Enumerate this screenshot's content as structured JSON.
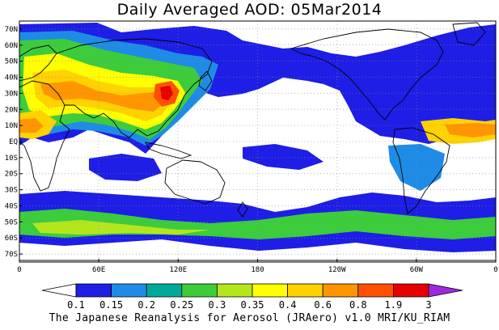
{
  "title": "Daily Averaged AOD: 05Mar2014",
  "footer": "The Japanese Reanalysis for Aerosol (JRAero) v1.0 MRI/KU_RIAM",
  "map": {
    "lat_labels": [
      "70N",
      "60N",
      "50N",
      "40N",
      "30N",
      "20N",
      "10N",
      "EQ",
      "10S",
      "20S",
      "30S",
      "40S",
      "50S",
      "60S",
      "70S"
    ],
    "lon_labels": [
      "0",
      "60E",
      "120E",
      "180",
      "120W",
      "60W",
      "0"
    ]
  },
  "colorbar": {
    "labels": [
      "0.1",
      "0.15",
      "0.2",
      "0.25",
      "0.3",
      "0.35",
      "0.4",
      "0.6",
      "0.8",
      "1.9",
      "3"
    ],
    "colors": [
      "#ffffff",
      "#1e1ee6",
      "#1e8ce6",
      "#00aa9a",
      "#3ccc3c",
      "#b4e61e",
      "#ffff00",
      "#ffd200",
      "#ff9600",
      "#ff5000",
      "#e60000",
      "#a028dc"
    ]
  },
  "colors": {
    "ocean": "#ffffff",
    "coast": "#000000",
    "grid": "#888888"
  }
}
